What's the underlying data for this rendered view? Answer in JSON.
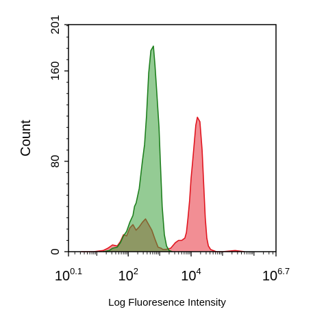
{
  "chart_data": {
    "type": "area",
    "title": "",
    "xlabel": "Log Fluoresence Intensity",
    "ylabel": "Count",
    "x_scale": "log10",
    "xlim_log10": [
      0.1,
      6.7
    ],
    "ylim": [
      0,
      201
    ],
    "x_ticks": [
      {
        "log10": 0.1,
        "base": "10",
        "exp": "0.1"
      },
      {
        "log10": 2,
        "base": "10",
        "exp": "2"
      },
      {
        "log10": 4,
        "base": "10",
        "exp": "4"
      },
      {
        "log10": 6.7,
        "base": "10",
        "exp": "6.7"
      }
    ],
    "y_ticks": [
      0,
      80,
      160,
      201
    ],
    "grid": false,
    "legend": "none",
    "series": [
      {
        "color_fill": "#e8323c",
        "color_line": "#e0141e",
        "opacity": 0.55,
        "x_log10": [
          0.5,
          0.9,
          1.2,
          1.35,
          1.5,
          1.65,
          1.75,
          1.85,
          1.95,
          2.05,
          2.15,
          2.25,
          2.35,
          2.45,
          2.55,
          2.65,
          2.75,
          2.85,
          2.95,
          3.05,
          3.1,
          3.2,
          3.35,
          3.5,
          3.6,
          3.7,
          3.8,
          3.85,
          3.9,
          3.95,
          4.0,
          4.05,
          4.15,
          4.2,
          4.28,
          4.35,
          4.4,
          4.45,
          4.5,
          4.55,
          4.62,
          4.7,
          4.8,
          5.0,
          5.4,
          5.7
        ],
        "y": [
          0,
          0,
          1,
          3,
          6,
          5,
          9,
          15,
          14,
          21,
          24,
          19,
          22,
          26,
          29,
          24,
          19,
          11,
          4,
          3,
          2,
          2,
          3,
          8,
          10,
          10,
          12,
          17,
          30,
          45,
          65,
          80,
          112,
          119,
          115,
          90,
          60,
          30,
          12,
          5,
          2,
          1,
          0,
          0,
          1,
          0
        ]
      },
      {
        "color_fill": "#3ca03c",
        "color_line": "#1e7f1e",
        "opacity": 0.55,
        "x_log10": [
          1.2,
          1.4,
          1.5,
          1.65,
          1.75,
          1.85,
          1.95,
          2.05,
          2.15,
          2.2,
          2.25,
          2.35,
          2.45,
          2.52,
          2.58,
          2.65,
          2.72,
          2.8,
          2.85,
          2.9,
          2.98,
          3.02,
          3.08,
          3.15,
          3.22,
          3.3,
          3.4
        ],
        "y": [
          0,
          1,
          3,
          4,
          8,
          14,
          18,
          26,
          32,
          40,
          43,
          56,
          80,
          95,
          120,
          158,
          178,
          182,
          165,
          145,
          110,
          80,
          40,
          15,
          5,
          1,
          0
        ]
      }
    ]
  }
}
